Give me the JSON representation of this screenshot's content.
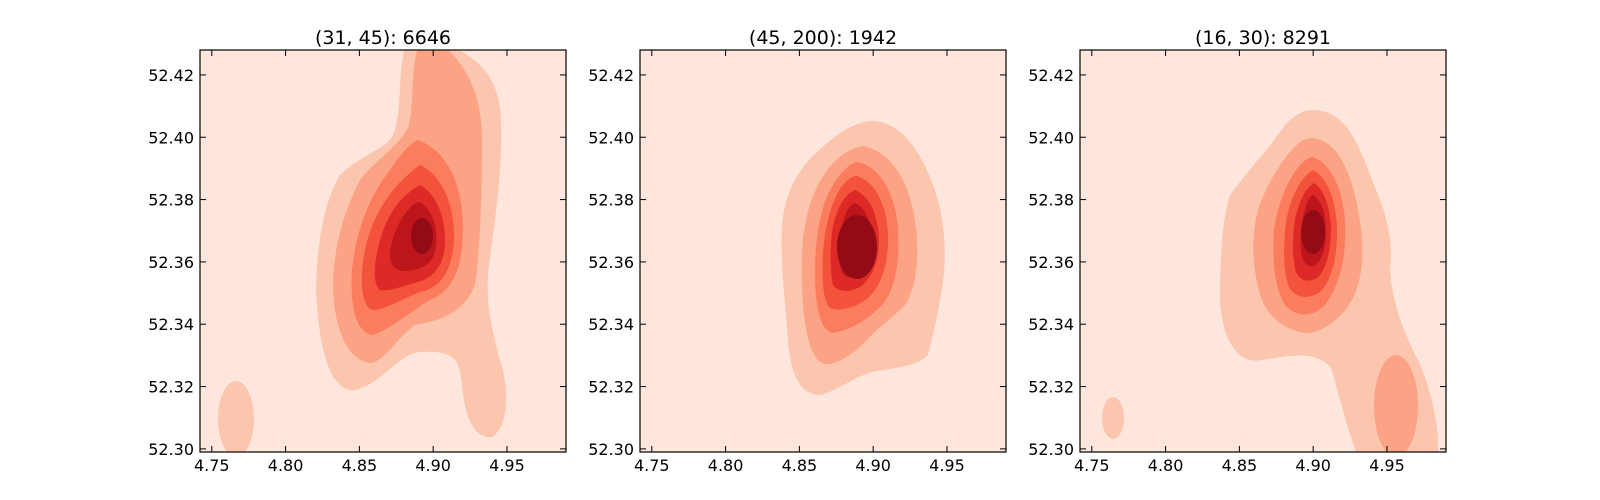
{
  "chart_data": [
    {
      "type": "contour",
      "title": "(31, 45): 6646",
      "xlim": [
        4.742,
        4.99
      ],
      "ylim": [
        52.299,
        52.428
      ],
      "xticks": [
        "4.75",
        "4.80",
        "4.85",
        "4.90",
        "4.95"
      ],
      "yticks": [
        "52.30",
        "52.32",
        "52.34",
        "52.36",
        "52.38",
        "52.40",
        "52.42"
      ],
      "grid": false,
      "colormap": "Reds",
      "peak": {
        "x": 4.89,
        "y": 52.37
      },
      "secondary_mode": {
        "x": 4.762,
        "y": 52.31
      }
    },
    {
      "type": "contour",
      "title": "(45, 200): 1942",
      "xlim": [
        4.742,
        4.99
      ],
      "ylim": [
        52.299,
        52.428
      ],
      "xticks": [
        "4.75",
        "4.80",
        "4.85",
        "4.90",
        "4.95"
      ],
      "yticks": [
        "52.30",
        "52.32",
        "52.34",
        "52.36",
        "52.38",
        "52.40",
        "52.42"
      ],
      "grid": false,
      "colormap": "Reds",
      "peak": {
        "x": 4.888,
        "y": 52.365
      }
    },
    {
      "type": "contour",
      "title": "(16, 30): 8291",
      "xlim": [
        4.742,
        4.99
      ],
      "ylim": [
        52.299,
        52.428
      ],
      "xticks": [
        "4.75",
        "4.80",
        "4.85",
        "4.90",
        "4.95"
      ],
      "yticks": [
        "52.30",
        "52.32",
        "52.34",
        "52.36",
        "52.38",
        "52.40",
        "52.42"
      ],
      "grid": false,
      "colormap": "Reds",
      "peak": {
        "x": 4.892,
        "y": 52.37
      },
      "secondary_mode": {
        "x": 4.955,
        "y": 52.315
      }
    }
  ],
  "colors": {
    "levels": [
      "#fee6dd",
      "#fcc5ae",
      "#fca385",
      "#fb7d5d",
      "#f4533b",
      "#dd2a26",
      "#bc161c",
      "#930b14"
    ]
  }
}
